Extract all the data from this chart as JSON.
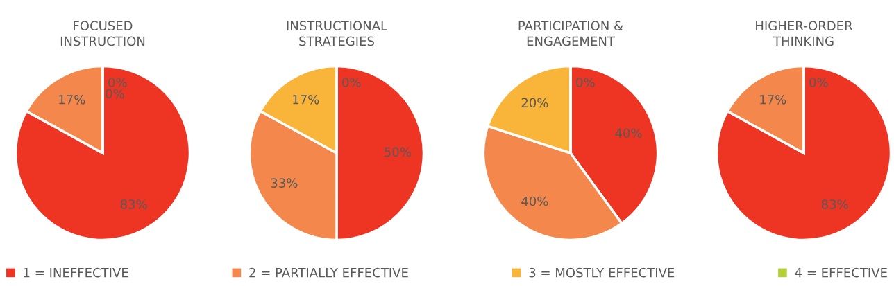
{
  "chart_data": [
    {
      "type": "pie",
      "title": "FOCUSED\nINSTRUCTION",
      "categories": [
        "1 = INEFFECTIVE",
        "2 = PARTIALLY EFFECTIVE",
        "3 = MOSTLY EFFECTIVE",
        "4 = EFFECTIVE"
      ],
      "values": [
        83,
        17,
        0,
        0
      ],
      "value_labels": [
        "83%",
        "17%",
        "0%",
        "0%"
      ],
      "colors": [
        "#ee3524",
        "#f4874b",
        "#f9b43a",
        "#b3cf3a"
      ],
      "legend": "bottom"
    },
    {
      "type": "pie",
      "title": "INSTRUCTIONAL\nSTRATEGIES",
      "categories": [
        null,
        null,
        null,
        null
      ],
      "values": [
        50,
        33,
        17,
        0
      ],
      "value_labels": [
        "50%",
        "33%",
        "17%",
        "0%"
      ],
      "colors": [
        "#ee3524",
        "#f4874b",
        "#f9b43a",
        "#b3cf3a"
      ]
    },
    {
      "type": "pie",
      "title": "PARTICIPATION &\nENGAGEMENT",
      "categories": [
        null,
        null,
        null,
        null
      ],
      "values": [
        40,
        40,
        20,
        0
      ],
      "value_labels": [
        "40%",
        "40%",
        "20%",
        "0%"
      ],
      "colors": [
        "#ee3524",
        "#f4874b",
        "#f9b43a",
        "#b3cf3a"
      ]
    },
    {
      "type": "pie",
      "title": "HIGHER-ORDER\nTHINKING",
      "categories": [
        null,
        null,
        null,
        null
      ],
      "values": [
        83,
        17,
        0,
        0
      ],
      "value_labels": [
        "83%",
        "17%",
        "0%",
        null
      ],
      "colors": [
        "#ee3524",
        "#f4874b",
        "#f9b43a",
        "#b3cf3a"
      ]
    }
  ]
}
